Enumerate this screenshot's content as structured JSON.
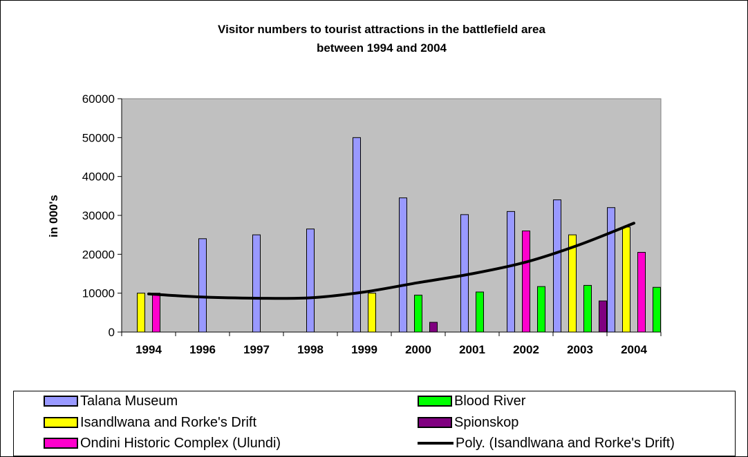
{
  "chart_data": {
    "type": "bar",
    "title_line1": "Visitor numbers to tourist attractions in the battlefield area",
    "title_line2": "between 1994 and 2004",
    "ylabel": "in 000's",
    "xlabel": "",
    "ylim": [
      0,
      60000
    ],
    "yticks": [
      "0",
      "10000",
      "20000",
      "30000",
      "40000",
      "50000",
      "60000"
    ],
    "grid": false,
    "legend_position": "bottom",
    "plot_background": "#C0C0C0",
    "categories": [
      "1994",
      "1996",
      "1997",
      "1998",
      "1999",
      "2000",
      "2001",
      "2002",
      "2003",
      "2004"
    ],
    "series": [
      {
        "name": "Talana Museum",
        "color": "#9999FF",
        "values": [
          null,
          24000,
          25000,
          26500,
          50000,
          34500,
          30200,
          31000,
          34000,
          32000
        ]
      },
      {
        "name": "Isandlwana and Rorke's Drift",
        "color": "#FFFF00",
        "values": [
          10000,
          null,
          null,
          null,
          10000,
          null,
          null,
          null,
          25000,
          27000
        ]
      },
      {
        "name": "Ondini Historic Complex (Ulundi)",
        "color": "#FF00CC",
        "values": [
          10000,
          null,
          null,
          null,
          null,
          null,
          null,
          26000,
          null,
          20500
        ]
      },
      {
        "name": "Blood River",
        "color": "#00FF00",
        "values": [
          null,
          null,
          null,
          null,
          null,
          9500,
          10300,
          11700,
          12000,
          11500
        ]
      },
      {
        "name": "Spionskop",
        "color": "#800080",
        "values": [
          null,
          null,
          null,
          null,
          null,
          2500,
          null,
          null,
          8000,
          null
        ]
      }
    ],
    "trendline": {
      "name": "Poly. (Isandlwana and Rorke's Drift)",
      "color": "#000000",
      "values": [
        9800,
        9000,
        8700,
        8800,
        10300,
        12700,
        15000,
        18000,
        22500,
        28000
      ]
    }
  }
}
